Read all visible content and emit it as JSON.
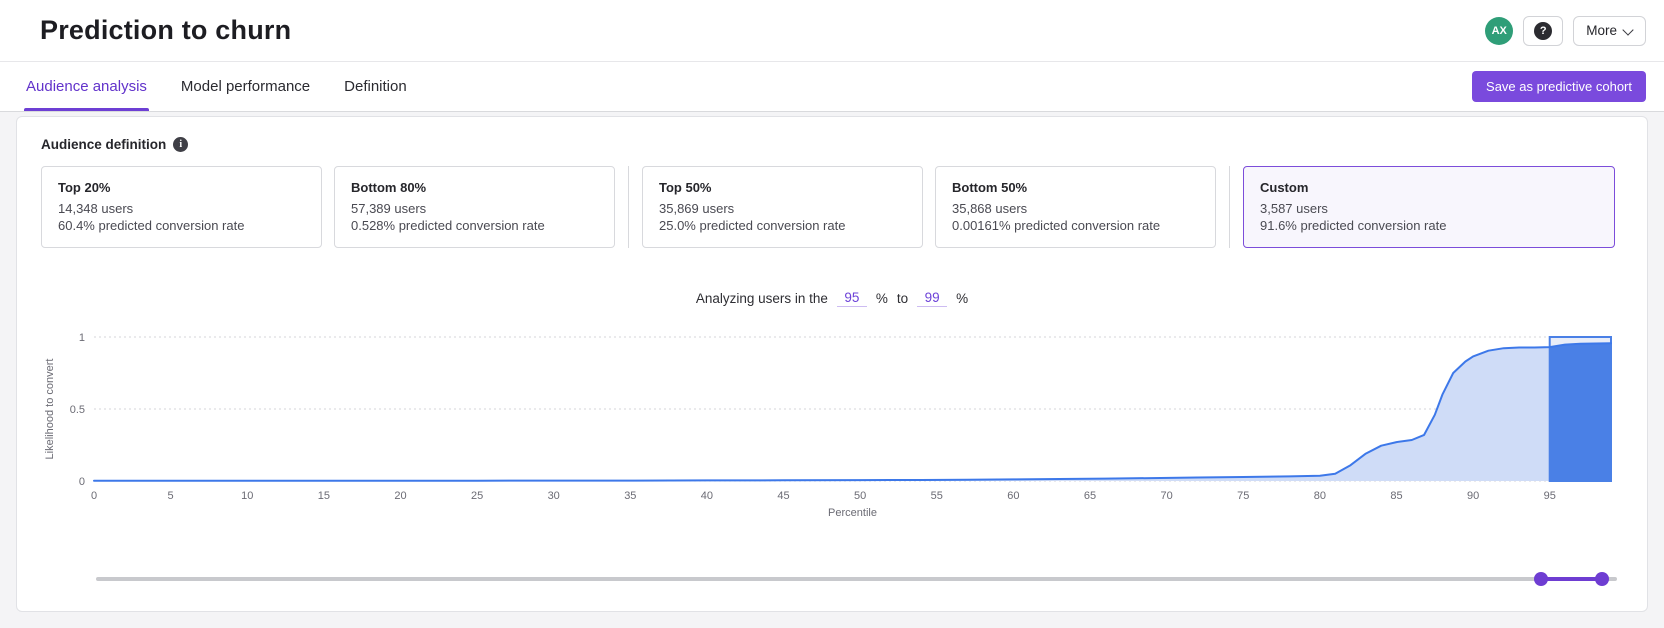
{
  "header": {
    "title": "Prediction to churn",
    "avatar": "AX",
    "help": "?",
    "more_label": "More"
  },
  "tabs": [
    {
      "label": "Audience analysis",
      "active": true
    },
    {
      "label": "Model performance",
      "active": false
    },
    {
      "label": "Definition",
      "active": false
    }
  ],
  "save_button_label": "Save as predictive cohort",
  "audience": {
    "section_title": "Audience definition",
    "info_icon": "i",
    "cards": [
      {
        "title": "Top 20%",
        "users": "14,348 users",
        "rate": "60.4% predicted conversion rate"
      },
      {
        "title": "Bottom 80%",
        "users": "57,389 users",
        "rate": "0.528% predicted conversion rate"
      },
      {
        "title": "Top 50%",
        "users": "35,869 users",
        "rate": "25.0% predicted conversion rate"
      },
      {
        "title": "Bottom 50%",
        "users": "35,868 users",
        "rate": "0.00161% predicted conversion rate"
      },
      {
        "title": "Custom",
        "users": "3,587 users",
        "rate": "91.6% predicted conversion rate"
      }
    ]
  },
  "range_control": {
    "prefix": "Analyzing users in the",
    "from": "95",
    "pct1": "%",
    "to_word": "to",
    "to": "99",
    "pct2": "%"
  },
  "chart_data": {
    "type": "area",
    "title": "",
    "xlabel": "Percentile",
    "ylabel": "Likelihood to convert",
    "xlim": [
      0,
      99
    ],
    "ylim": [
      0,
      1
    ],
    "xticks": [
      0,
      5,
      10,
      15,
      20,
      25,
      30,
      35,
      40,
      45,
      50,
      55,
      60,
      65,
      70,
      75,
      80,
      85,
      90,
      95
    ],
    "yticks": [
      0,
      0.5,
      1
    ],
    "grid": "dotted horizontal",
    "legend": "none",
    "series": [
      {
        "name": "Likelihood to convert",
        "points": [
          [
            0,
            0.002
          ],
          [
            5,
            0.002
          ],
          [
            10,
            0.002
          ],
          [
            15,
            0.002
          ],
          [
            20,
            0.002
          ],
          [
            25,
            0.002
          ],
          [
            30,
            0.003
          ],
          [
            35,
            0.003
          ],
          [
            40,
            0.004
          ],
          [
            45,
            0.005
          ],
          [
            50,
            0.006
          ],
          [
            54,
            0.007
          ],
          [
            57,
            0.009
          ],
          [
            60,
            0.011
          ],
          [
            63,
            0.014
          ],
          [
            66,
            0.017
          ],
          [
            69,
            0.02
          ],
          [
            72,
            0.024
          ],
          [
            75,
            0.028
          ],
          [
            78,
            0.032
          ],
          [
            80,
            0.036
          ],
          [
            81,
            0.05
          ],
          [
            82,
            0.11
          ],
          [
            83,
            0.19
          ],
          [
            84,
            0.245
          ],
          [
            85,
            0.27
          ],
          [
            86,
            0.285
          ],
          [
            86.8,
            0.32
          ],
          [
            87.5,
            0.46
          ],
          [
            88,
            0.6
          ],
          [
            88.7,
            0.75
          ],
          [
            89.5,
            0.83
          ],
          [
            90,
            0.865
          ],
          [
            91,
            0.905
          ],
          [
            92,
            0.922
          ],
          [
            93,
            0.927
          ],
          [
            94,
            0.927
          ],
          [
            95,
            0.93
          ],
          [
            96,
            0.947
          ],
          [
            97,
            0.953
          ],
          [
            98,
            0.955
          ],
          [
            99,
            0.957
          ]
        ]
      }
    ],
    "selection": {
      "from": 95,
      "to": 99
    },
    "colors": {
      "line": "#3d78e9",
      "area": "#cfdcf7",
      "selection_fill": "#4a80e6",
      "selection_top": "#e9edf8",
      "selection_border": "#4a80e6",
      "grid": "#d4d4d9",
      "axis_text": "#6b6b74"
    }
  },
  "slider": {
    "min": 0,
    "max": 100,
    "from": 95,
    "to": 99
  },
  "brand": {
    "accent_purple": "#6d3fd4",
    "button_purple": "#7a4add",
    "avatar_green": "#2f9e78"
  }
}
